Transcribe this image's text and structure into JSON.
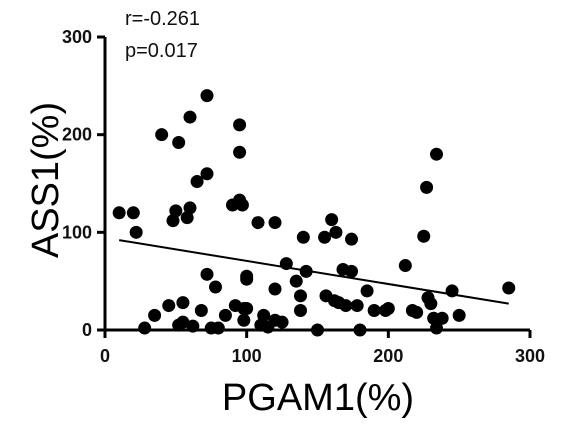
{
  "chart_data": {
    "type": "scatter",
    "title": "",
    "xlabel": "PGAM1(%)",
    "ylabel": "ASS1(%)",
    "xlim": [
      0,
      300
    ],
    "ylim": [
      0,
      300
    ],
    "xticks": [
      0,
      100,
      200,
      300
    ],
    "yticks": [
      0,
      100,
      200,
      300
    ],
    "grid": false,
    "annotations": [
      "r=-0.261",
      "p=0.017"
    ],
    "trendline": {
      "x": [
        10,
        285
      ],
      "y": [
        92,
        27
      ]
    },
    "points": [
      {
        "x": 10,
        "y": 120
      },
      {
        "x": 20,
        "y": 120
      },
      {
        "x": 22,
        "y": 100
      },
      {
        "x": 28,
        "y": 2
      },
      {
        "x": 35,
        "y": 15
      },
      {
        "x": 40,
        "y": 200
      },
      {
        "x": 45,
        "y": 25
      },
      {
        "x": 48,
        "y": 112
      },
      {
        "x": 50,
        "y": 122
      },
      {
        "x": 52,
        "y": 192
      },
      {
        "x": 52,
        "y": 5
      },
      {
        "x": 55,
        "y": 28
      },
      {
        "x": 55,
        "y": 8
      },
      {
        "x": 58,
        "y": 115
      },
      {
        "x": 60,
        "y": 125
      },
      {
        "x": 60,
        "y": 218
      },
      {
        "x": 62,
        "y": 4
      },
      {
        "x": 65,
        "y": 152
      },
      {
        "x": 68,
        "y": 20
      },
      {
        "x": 72,
        "y": 240
      },
      {
        "x": 72,
        "y": 160
      },
      {
        "x": 72,
        "y": 57
      },
      {
        "x": 75,
        "y": 2
      },
      {
        "x": 78,
        "y": 44
      },
      {
        "x": 80,
        "y": 2
      },
      {
        "x": 85,
        "y": 15
      },
      {
        "x": 90,
        "y": 128
      },
      {
        "x": 92,
        "y": 25
      },
      {
        "x": 95,
        "y": 210
      },
      {
        "x": 95,
        "y": 182
      },
      {
        "x": 95,
        "y": 133
      },
      {
        "x": 97,
        "y": 128
      },
      {
        "x": 98,
        "y": 22
      },
      {
        "x": 98,
        "y": 10
      },
      {
        "x": 100,
        "y": 52
      },
      {
        "x": 100,
        "y": 55
      },
      {
        "x": 100,
        "y": 22
      },
      {
        "x": 108,
        "y": 110
      },
      {
        "x": 110,
        "y": 5
      },
      {
        "x": 112,
        "y": 15
      },
      {
        "x": 115,
        "y": 3
      },
      {
        "x": 120,
        "y": 10
      },
      {
        "x": 120,
        "y": 110
      },
      {
        "x": 120,
        "y": 42
      },
      {
        "x": 125,
        "y": 8
      },
      {
        "x": 128,
        "y": 68
      },
      {
        "x": 135,
        "y": 50
      },
      {
        "x": 138,
        "y": 20
      },
      {
        "x": 138,
        "y": 35
      },
      {
        "x": 140,
        "y": 95
      },
      {
        "x": 142,
        "y": 60
      },
      {
        "x": 150,
        "y": 0
      },
      {
        "x": 155,
        "y": 95
      },
      {
        "x": 156,
        "y": 35
      },
      {
        "x": 160,
        "y": 113
      },
      {
        "x": 162,
        "y": 30
      },
      {
        "x": 163,
        "y": 100
      },
      {
        "x": 165,
        "y": 28
      },
      {
        "x": 168,
        "y": 62
      },
      {
        "x": 170,
        "y": 25
      },
      {
        "x": 174,
        "y": 60
      },
      {
        "x": 174,
        "y": 93
      },
      {
        "x": 178,
        "y": 25
      },
      {
        "x": 180,
        "y": 0
      },
      {
        "x": 185,
        "y": 40
      },
      {
        "x": 190,
        "y": 20
      },
      {
        "x": 198,
        "y": 20
      },
      {
        "x": 200,
        "y": 22
      },
      {
        "x": 212,
        "y": 66
      },
      {
        "x": 217,
        "y": 20
      },
      {
        "x": 220,
        "y": 18
      },
      {
        "x": 225,
        "y": 96
      },
      {
        "x": 227,
        "y": 146
      },
      {
        "x": 228,
        "y": 33
      },
      {
        "x": 230,
        "y": 27
      },
      {
        "x": 232,
        "y": 12
      },
      {
        "x": 234,
        "y": 180
      },
      {
        "x": 234,
        "y": 2
      },
      {
        "x": 238,
        "y": 12
      },
      {
        "x": 245,
        "y": 40
      },
      {
        "x": 250,
        "y": 15
      },
      {
        "x": 285,
        "y": 43
      }
    ]
  }
}
